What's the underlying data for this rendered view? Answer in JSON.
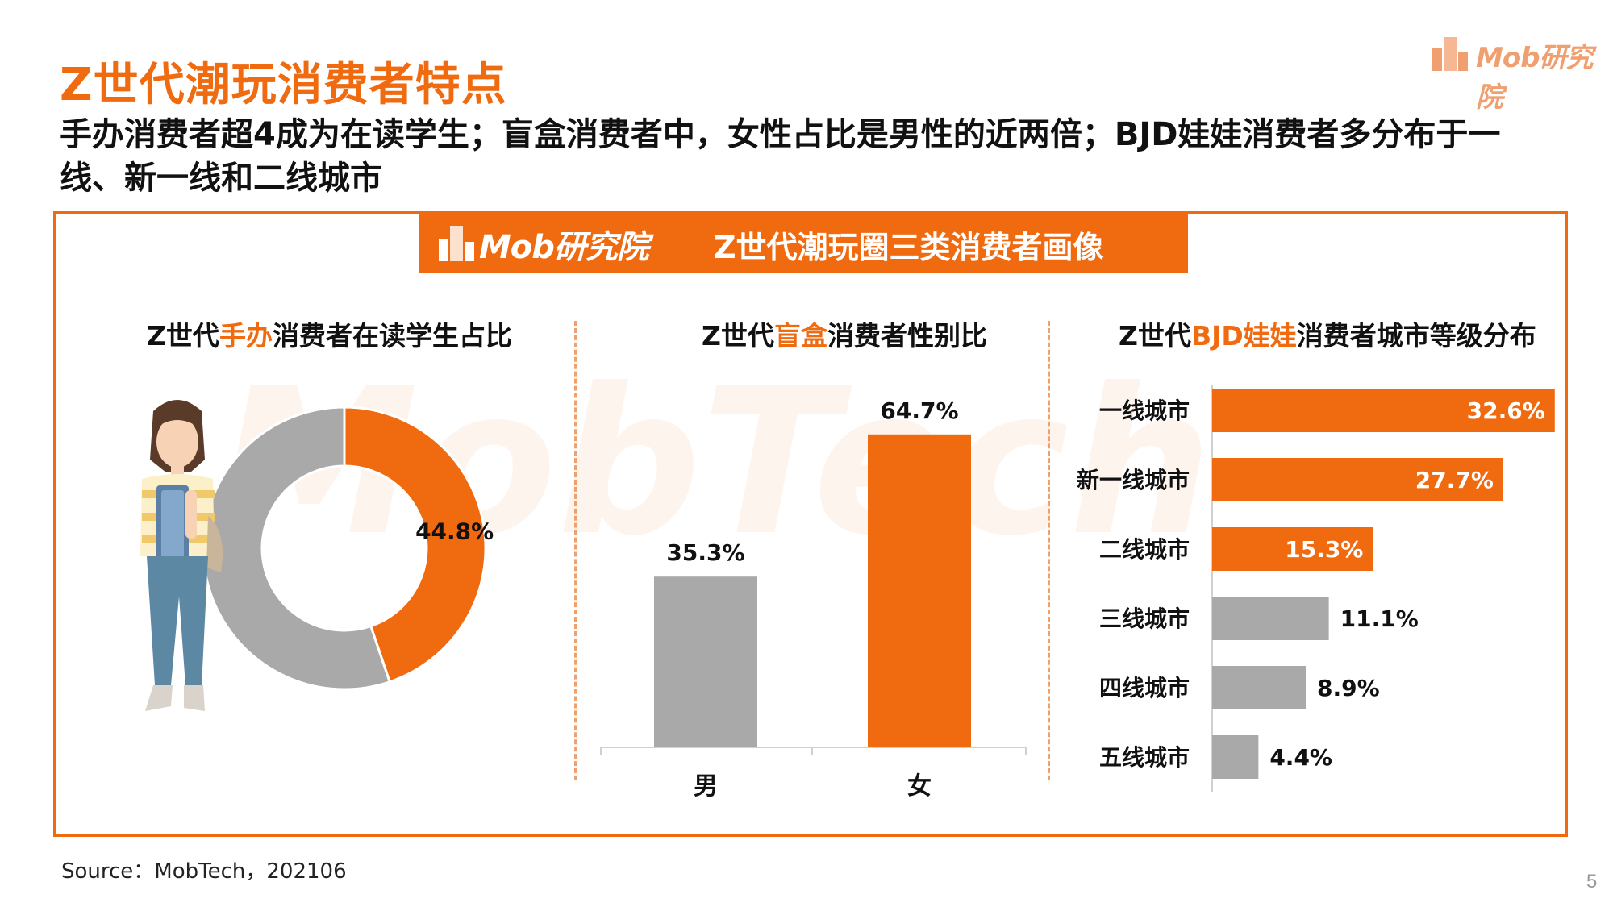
{
  "title": "Z世代潮玩消费者特点",
  "subtitle": "手办消费者超4成为在读学生；盲盒消费者中，女性占比是男性的近两倍；BJD娃娃消费者多分布于一线、新一线和二线城市",
  "logo_text": "Mob研究院",
  "watermark_text": "MobTech",
  "banner": {
    "logo_text": "Mob研究院",
    "title": "Z世代潮玩圈三类消费者画像"
  },
  "panels": {
    "donut": {
      "title_pre": "Z世代",
      "title_hl": "手办",
      "title_post": "消费者在读学生占比"
    },
    "gender": {
      "title_pre": "Z世代",
      "title_hl": "盲盒",
      "title_post": "消费者性别比"
    },
    "city": {
      "title_pre": "Z世代",
      "title_hl": "BJD娃娃",
      "title_post": "消费者城市等级分布"
    }
  },
  "colors": {
    "accent": "#f06a10",
    "gray": "#a9a9a9",
    "frame": "#f06a10"
  },
  "chart_data": [
    {
      "type": "pie",
      "variant": "donut",
      "slices": [
        {
          "value": 44.8,
          "label": "44.8%",
          "color": "#f06a10"
        },
        {
          "value": 55.2,
          "label": "",
          "color": "#a9a9a9"
        }
      ]
    },
    {
      "type": "bar",
      "orientation": "vertical",
      "categories": [
        "男",
        "女"
      ],
      "values": [
        35.3,
        64.7
      ],
      "labels": [
        "35.3%",
        "64.7%"
      ],
      "colors": [
        "#a9a9a9",
        "#f06a10"
      ],
      "ylim": [
        0,
        70
      ]
    },
    {
      "type": "bar",
      "orientation": "horizontal",
      "categories": [
        "一线城市",
        "新一线城市",
        "二线城市",
        "三线城市",
        "四线城市",
        "五线城市"
      ],
      "values": [
        32.6,
        27.7,
        15.3,
        11.1,
        8.9,
        4.4
      ],
      "labels": [
        "32.6%",
        "27.7%",
        "15.3%",
        "11.1%",
        "8.9%",
        "4.4%"
      ],
      "colors": [
        "#f06a10",
        "#f06a10",
        "#f06a10",
        "#a9a9a9",
        "#a9a9a9",
        "#a9a9a9"
      ],
      "xlim": [
        0,
        33
      ]
    }
  ],
  "source": "Source：MobTech，202106",
  "page_number": "5"
}
